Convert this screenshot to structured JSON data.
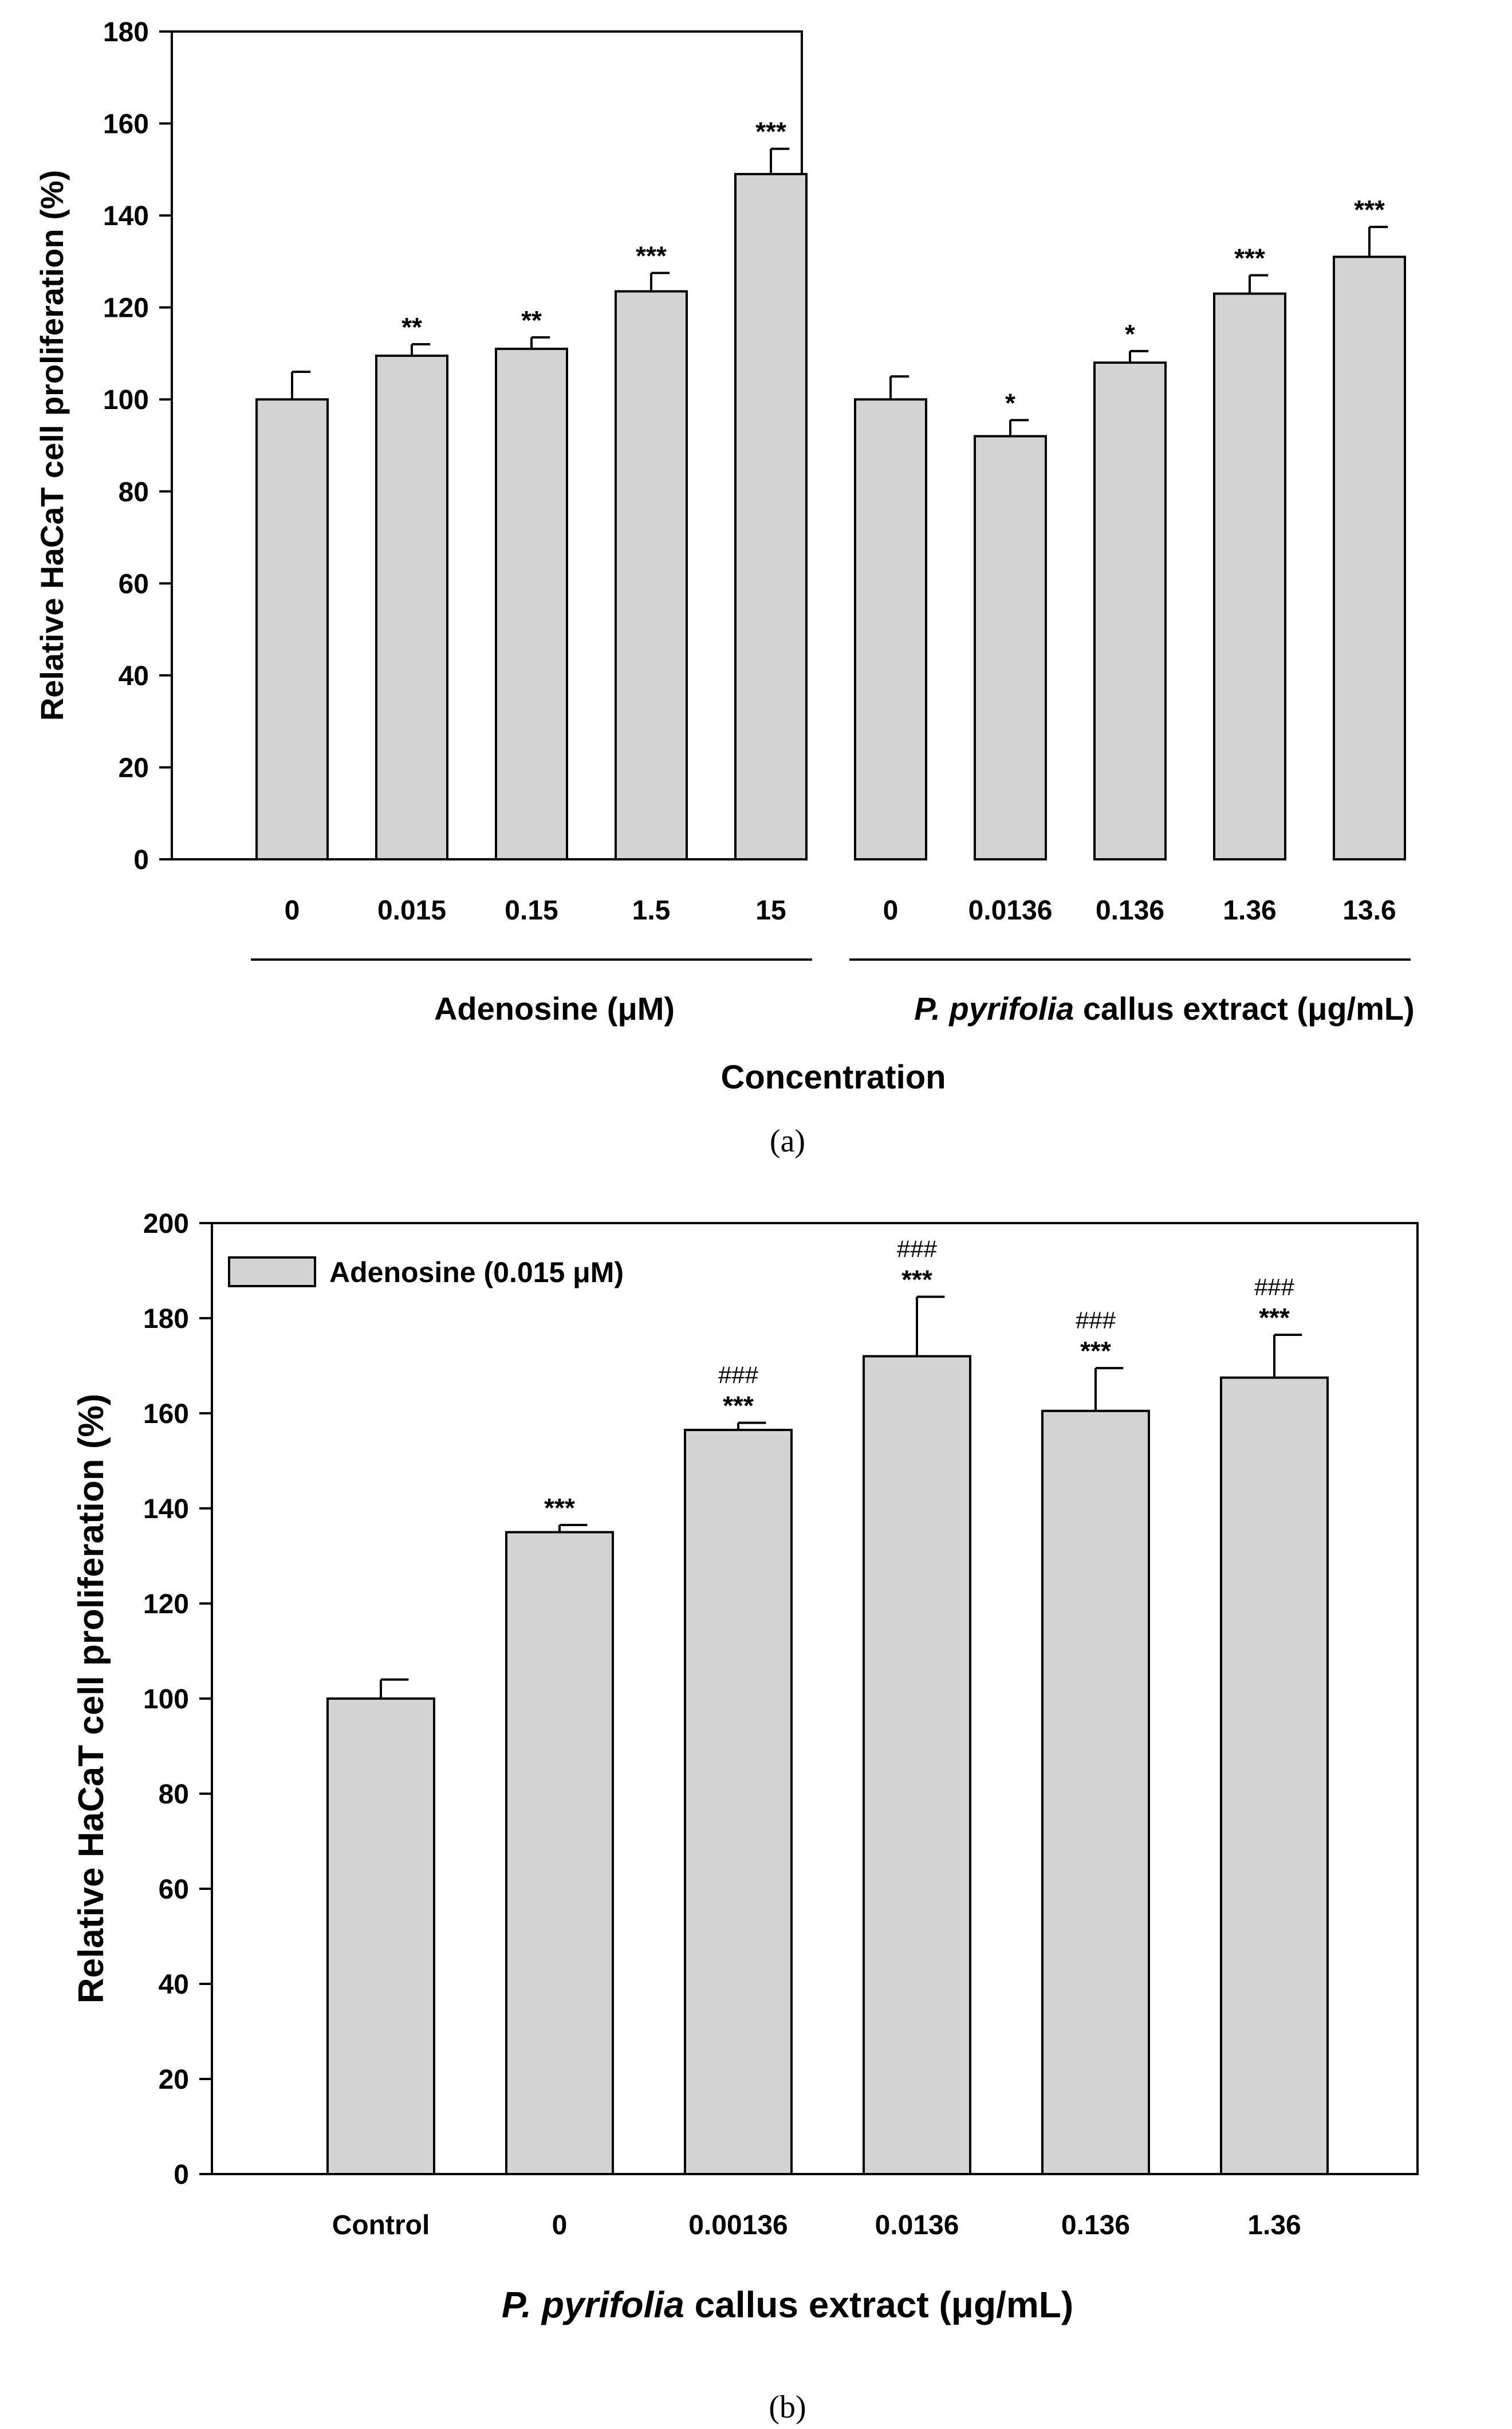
{
  "figure": {
    "caption_a": "(a)",
    "caption_b": "(b)"
  },
  "chart_data": [
    {
      "type": "bar",
      "panel": "a",
      "title": "",
      "ylabel": "Relative HaCaT cell proliferation (%)",
      "xlabel": "Concentration",
      "ylim": [
        0,
        180
      ],
      "yticks": [
        0,
        20,
        40,
        60,
        80,
        100,
        120,
        140,
        160,
        180
      ],
      "categories": [
        "0",
        "0.015",
        "0.15",
        "1.5",
        "15",
        "0",
        "0.0136",
        "0.136",
        "1.36",
        "13.6"
      ],
      "values": [
        100,
        109.5,
        111,
        123.5,
        149,
        100,
        92,
        108,
        123,
        131
      ],
      "errors": [
        6,
        2.5,
        2.5,
        4,
        5.5,
        5,
        3.5,
        2.5,
        4,
        6.5
      ],
      "significance": [
        {
          "lines": []
        },
        {
          "lines": [
            "**"
          ]
        },
        {
          "lines": [
            "**"
          ]
        },
        {
          "lines": [
            "***"
          ]
        },
        {
          "lines": [
            "***"
          ]
        },
        {
          "lines": []
        },
        {
          "lines": [
            "*"
          ]
        },
        {
          "lines": [
            "*"
          ]
        },
        {
          "lines": [
            "***"
          ]
        },
        {
          "lines": [
            "***"
          ]
        }
      ],
      "groups": [
        {
          "prefix": "",
          "italic": "",
          "label": "Adenosine (μM)",
          "from": 0,
          "to": 4
        },
        {
          "prefix": "",
          "italic": "P. pyrifolia",
          "label": " callus extract (μg/mL)",
          "from": 5,
          "to": 9
        }
      ],
      "bar_color": "#d3d3d3",
      "edge_color": "#000000"
    },
    {
      "type": "bar",
      "panel": "b",
      "title": "",
      "ylabel": "Relative HaCaT cell proliferation (%)",
      "xlabel_italic": "P. pyrifolia",
      "xlabel": " callus extract (μg/mL)",
      "ylim": [
        0,
        200
      ],
      "yticks": [
        0,
        20,
        40,
        60,
        80,
        100,
        120,
        140,
        160,
        180,
        200
      ],
      "categories": [
        "Control",
        "0",
        "0.00136",
        "0.0136",
        "0.136",
        "1.36"
      ],
      "values": [
        100,
        135,
        156.5,
        172,
        160.5,
        167.5
      ],
      "errors": [
        4,
        1.5,
        1.5,
        12.5,
        9,
        9
      ],
      "significance": [
        {
          "lines": []
        },
        {
          "lines": [
            "***"
          ]
        },
        {
          "lines": [
            "###",
            "***"
          ]
        },
        {
          "lines": [
            "###",
            "***"
          ]
        },
        {
          "lines": [
            "###",
            "***"
          ]
        },
        {
          "lines": [
            "###",
            "***"
          ]
        }
      ],
      "legend": {
        "label": "Adenosine (0.015 μM)",
        "position": "top-left"
      },
      "bar_color": "#d3d3d3",
      "edge_color": "#000000"
    }
  ]
}
